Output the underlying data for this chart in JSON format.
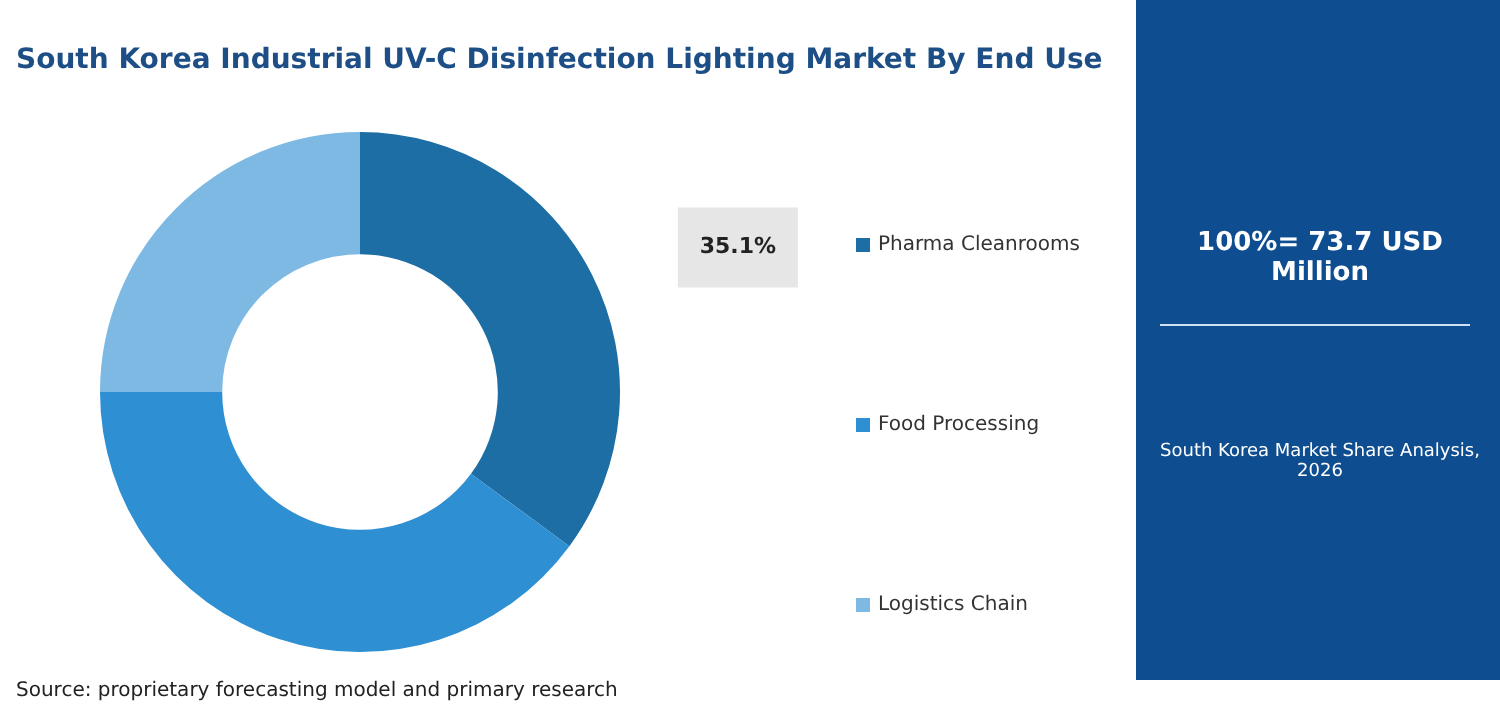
{
  "chart_data": {
    "type": "donut",
    "title": "South Korea Industrial UV-C Disinfection Lighting Market By End Use",
    "subtitle": "100%= 73.7 USD Million",
    "categories": [
      "Pharma Cleanrooms",
      "Food Processing",
      "Logistics Chain"
    ],
    "values": [
      35.1,
      39.9,
      25
    ],
    "colors": [
      "#1c6ea4",
      "#2f8fd3",
      "#7db9e3"
    ],
    "value_labels": [
      "35.1%",
      null,
      null
    ],
    "legend": "right",
    "annotations": [
      "South Korea Market Share Analysis, 2026",
      "Source: proprietary forecasting model and primary research"
    ]
  }
}
